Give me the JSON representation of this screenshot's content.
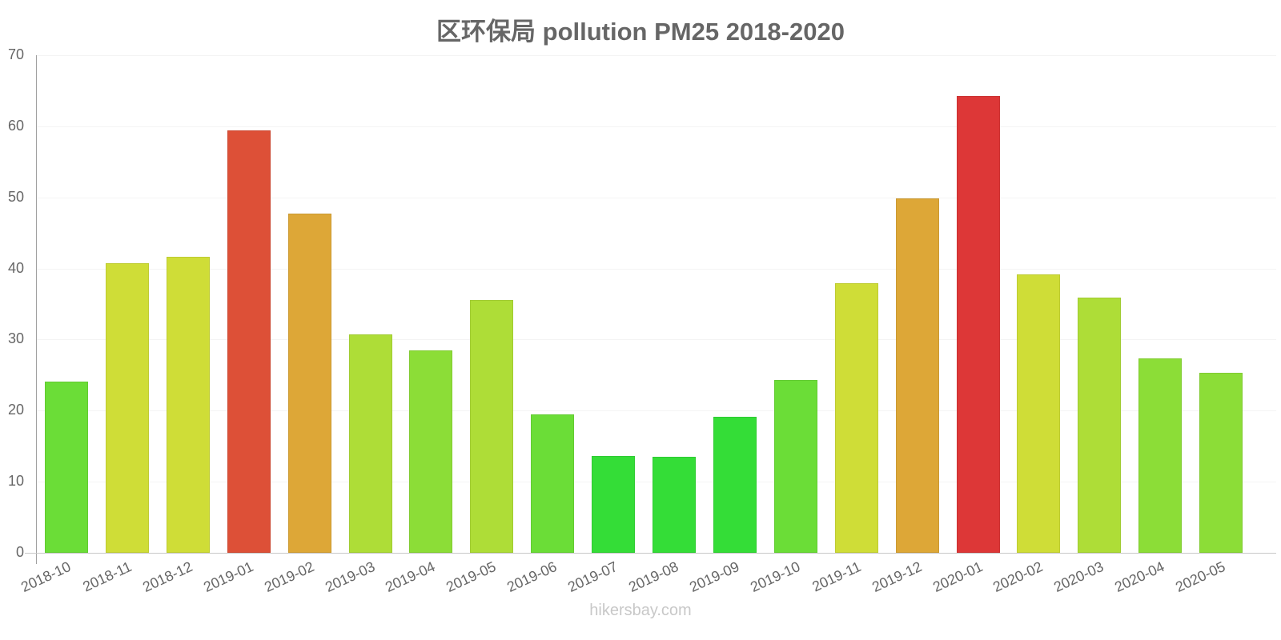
{
  "chart_data": {
    "type": "bar",
    "title": "区环保局 pollution PM25 2018-2020",
    "xlabel": "",
    "ylabel": "",
    "ylim": [
      0,
      70
    ],
    "yticks": [
      0,
      10,
      20,
      30,
      40,
      50,
      60,
      70
    ],
    "grid": true,
    "legend": null,
    "categories": [
      "2018-10",
      "2018-11",
      "2018-12",
      "2019-01",
      "2019-02",
      "2019-03",
      "2019-04",
      "2019-05",
      "2019-06",
      "2019-07",
      "2019-08",
      "2019-09",
      "2019-10",
      "2019-11",
      "2019-12",
      "2020-01",
      "2020-02",
      "2020-03",
      "2020-04",
      "2020-05"
    ],
    "values": [
      24.1,
      40.7,
      41.6,
      59.4,
      47.7,
      30.7,
      28.5,
      35.6,
      19.5,
      13.6,
      13.5,
      19.1,
      24.3,
      37.9,
      49.9,
      64.3,
      39.2,
      35.9,
      27.3,
      25.3
    ],
    "colors": [
      "#6bdd37",
      "#cfdd37",
      "#cfdd37",
      "#dd5037",
      "#dda737",
      "#aedd37",
      "#8cdd37",
      "#aedd37",
      "#6bdd37",
      "#34dd37",
      "#34dd37",
      "#34dd37",
      "#6bdd37",
      "#cfdd37",
      "#dda737",
      "#dd3737",
      "#cfdd37",
      "#aedd37",
      "#8cdd37",
      "#8cdd37"
    ]
  },
  "watermark": "hikersbay.com"
}
